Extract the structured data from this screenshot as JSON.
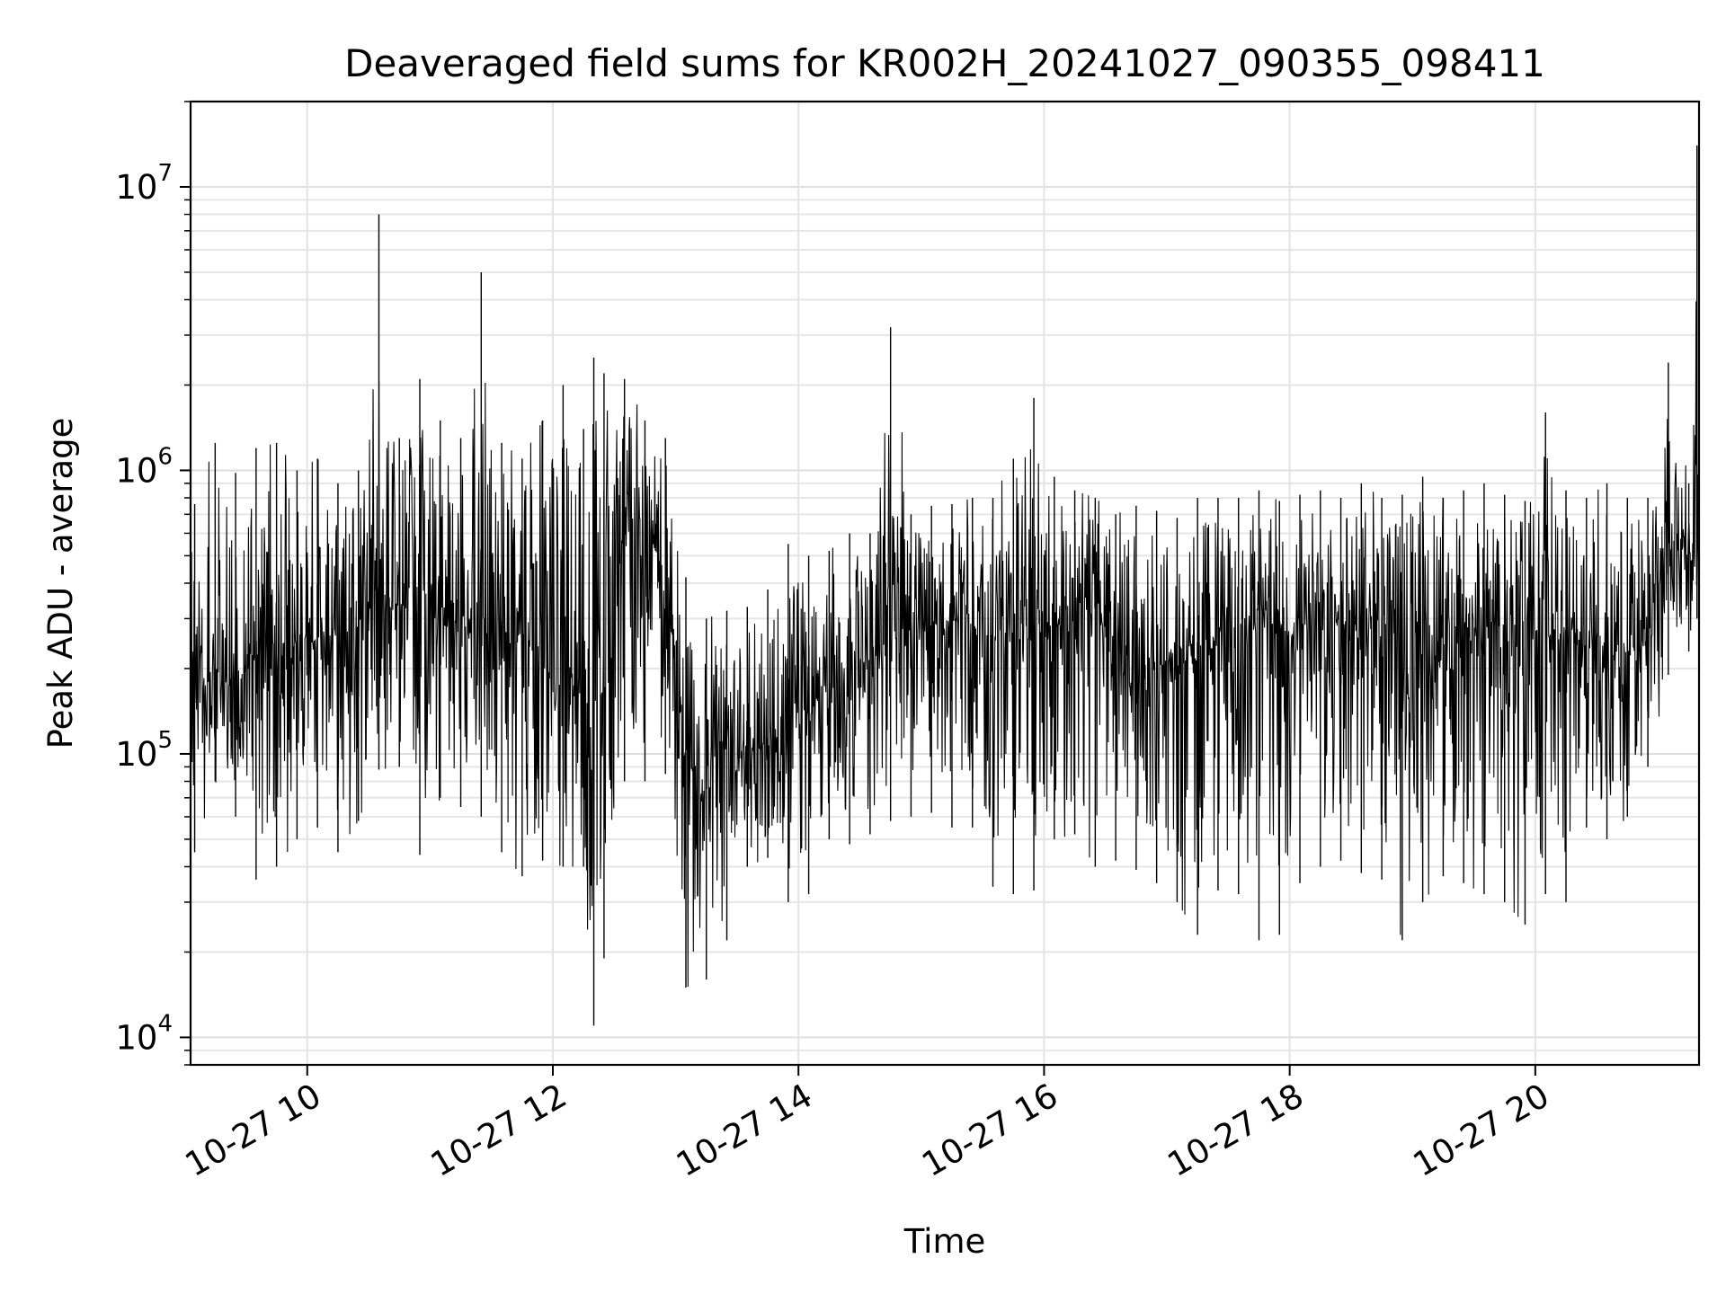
{
  "chart_data": {
    "type": "line",
    "title": "Deaveraged field sums for KR002H_20241027_090355_098411",
    "xlabel": "Time",
    "ylabel": "Peak ADU - average",
    "yscale": "log",
    "grid": true,
    "xlim": [
      "2024-10-27 09:03",
      "2024-10-27 21:20"
    ],
    "ylim": [
      8000,
      20000000
    ],
    "x_ticks": [
      {
        "value": "2024-10-27 10:00",
        "label": "10-27 10"
      },
      {
        "value": "2024-10-27 12:00",
        "label": "10-27 12"
      },
      {
        "value": "2024-10-27 14:00",
        "label": "10-27 14"
      },
      {
        "value": "2024-10-27 16:00",
        "label": "10-27 16"
      },
      {
        "value": "2024-10-27 18:00",
        "label": "10-27 18"
      },
      {
        "value": "2024-10-27 20:00",
        "label": "10-27 20"
      }
    ],
    "y_ticks": [
      {
        "value": 10000,
        "base": "10",
        "exp": "4"
      },
      {
        "value": 100000,
        "base": "10",
        "exp": "5"
      },
      {
        "value": 1000000,
        "base": "10",
        "exp": "6"
      },
      {
        "value": 10000000,
        "base": "10",
        "exp": "7"
      }
    ],
    "line_color": "#000000",
    "series": [
      {
        "name": "",
        "x": [
          "2024-10-27 09:05",
          "2024-10-27 09:15",
          "2024-10-27 09:25",
          "2024-10-27 09:35",
          "2024-10-27 09:45",
          "2024-10-27 09:55",
          "2024-10-27 10:05",
          "2024-10-27 10:15",
          "2024-10-27 10:25",
          "2024-10-27 10:35",
          "2024-10-27 10:45",
          "2024-10-27 10:55",
          "2024-10-27 11:05",
          "2024-10-27 11:15",
          "2024-10-27 11:25",
          "2024-10-27 11:35",
          "2024-10-27 11:45",
          "2024-10-27 11:55",
          "2024-10-27 12:05",
          "2024-10-27 12:15",
          "2024-10-27 12:20",
          "2024-10-27 12:25",
          "2024-10-27 12:35",
          "2024-10-27 12:45",
          "2024-10-27 12:55",
          "2024-10-27 13:05",
          "2024-10-27 13:15",
          "2024-10-27 13:25",
          "2024-10-27 13:35",
          "2024-10-27 13:45",
          "2024-10-27 13:55",
          "2024-10-27 14:05",
          "2024-10-27 14:15",
          "2024-10-27 14:25",
          "2024-10-27 14:35",
          "2024-10-27 14:45",
          "2024-10-27 14:55",
          "2024-10-27 15:05",
          "2024-10-27 15:15",
          "2024-10-27 15:25",
          "2024-10-27 15:35",
          "2024-10-27 15:45",
          "2024-10-27 15:55",
          "2024-10-27 16:05",
          "2024-10-27 16:15",
          "2024-10-27 16:25",
          "2024-10-27 16:35",
          "2024-10-27 16:45",
          "2024-10-27 16:55",
          "2024-10-27 17:05",
          "2024-10-27 17:15",
          "2024-10-27 17:25",
          "2024-10-27 17:35",
          "2024-10-27 17:45",
          "2024-10-27 17:55",
          "2024-10-27 18:05",
          "2024-10-27 18:15",
          "2024-10-27 18:25",
          "2024-10-27 18:35",
          "2024-10-27 18:45",
          "2024-10-27 18:55",
          "2024-10-27 19:05",
          "2024-10-27 19:15",
          "2024-10-27 19:25",
          "2024-10-27 19:35",
          "2024-10-27 19:45",
          "2024-10-27 19:55",
          "2024-10-27 20:05",
          "2024-10-27 20:15",
          "2024-10-27 20:25",
          "2024-10-27 20:35",
          "2024-10-27 20:45",
          "2024-10-27 20:55",
          "2024-10-27 21:05",
          "2024-10-27 21:15",
          "2024-10-27 21:19"
        ],
        "y": [
          210000,
          190000,
          170000,
          220000,
          180000,
          260000,
          250000,
          270000,
          280000,
          380000,
          330000,
          400000,
          280000,
          300000,
          350000,
          260000,
          280000,
          190000,
          180000,
          220000,
          150000,
          400000,
          600000,
          650000,
          420000,
          90000,
          80000,
          95000,
          100000,
          110000,
          115000,
          140000,
          170000,
          180000,
          210000,
          250000,
          270000,
          280000,
          300000,
          280000,
          260000,
          300000,
          270000,
          280000,
          300000,
          320000,
          250000,
          210000,
          200000,
          220000,
          240000,
          260000,
          270000,
          280000,
          260000,
          270000,
          280000,
          300000,
          270000,
          260000,
          280000,
          300000,
          250000,
          240000,
          270000,
          280000,
          290000,
          260000,
          250000,
          240000,
          220000,
          230000,
          260000,
          550000,
          500000,
          450000
        ],
        "y_max": [
          760000,
          1250000,
          980000,
          1200000,
          1250000,
          1000000,
          1100000,
          900000,
          1000000,
          8000000,
          1300000,
          2100000,
          1500000,
          1300000,
          5000000,
          1250000,
          1100000,
          1500000,
          2000000,
          1400000,
          2500000,
          2200000,
          2100000,
          1500000,
          1300000,
          420000,
          300000,
          320000,
          330000,
          380000,
          550000,
          500000,
          520000,
          600000,
          600000,
          3200000,
          700000,
          750000,
          760000,
          800000,
          800000,
          1100000,
          1800000,
          950000,
          850000,
          800000,
          700000,
          750000,
          720000,
          680000,
          800000,
          800000,
          800000,
          850000,
          780000,
          820000,
          850000,
          800000,
          900000,
          800000,
          820000,
          950000,
          800000,
          850000,
          900000,
          820000,
          780000,
          1600000,
          850000,
          800000,
          900000,
          800000,
          800000,
          2400000,
          900000,
          14000000
        ],
        "y_min": [
          45000,
          80000,
          60000,
          36000,
          40000,
          50000,
          55000,
          45000,
          58000,
          88000,
          90000,
          44000,
          70000,
          65000,
          60000,
          45000,
          37000,
          42000,
          40000,
          40000,
          11000,
          19000,
          80000,
          80000,
          85000,
          15000,
          16000,
          22000,
          40000,
          43000,
          30000,
          32000,
          50000,
          48000,
          52000,
          58000,
          60000,
          62000,
          55000,
          55000,
          34000,
          32000,
          33000,
          50000,
          52000,
          40000,
          42000,
          39000,
          35000,
          30000,
          23000,
          33000,
          32000,
          22000,
          23000,
          35000,
          40000,
          42000,
          38000,
          36000,
          22000,
          30000,
          37000,
          35000,
          32000,
          30000,
          25000,
          32000,
          30000,
          55000,
          50000,
          60000,
          90000,
          190000,
          230000,
          300000
        ]
      }
    ]
  }
}
